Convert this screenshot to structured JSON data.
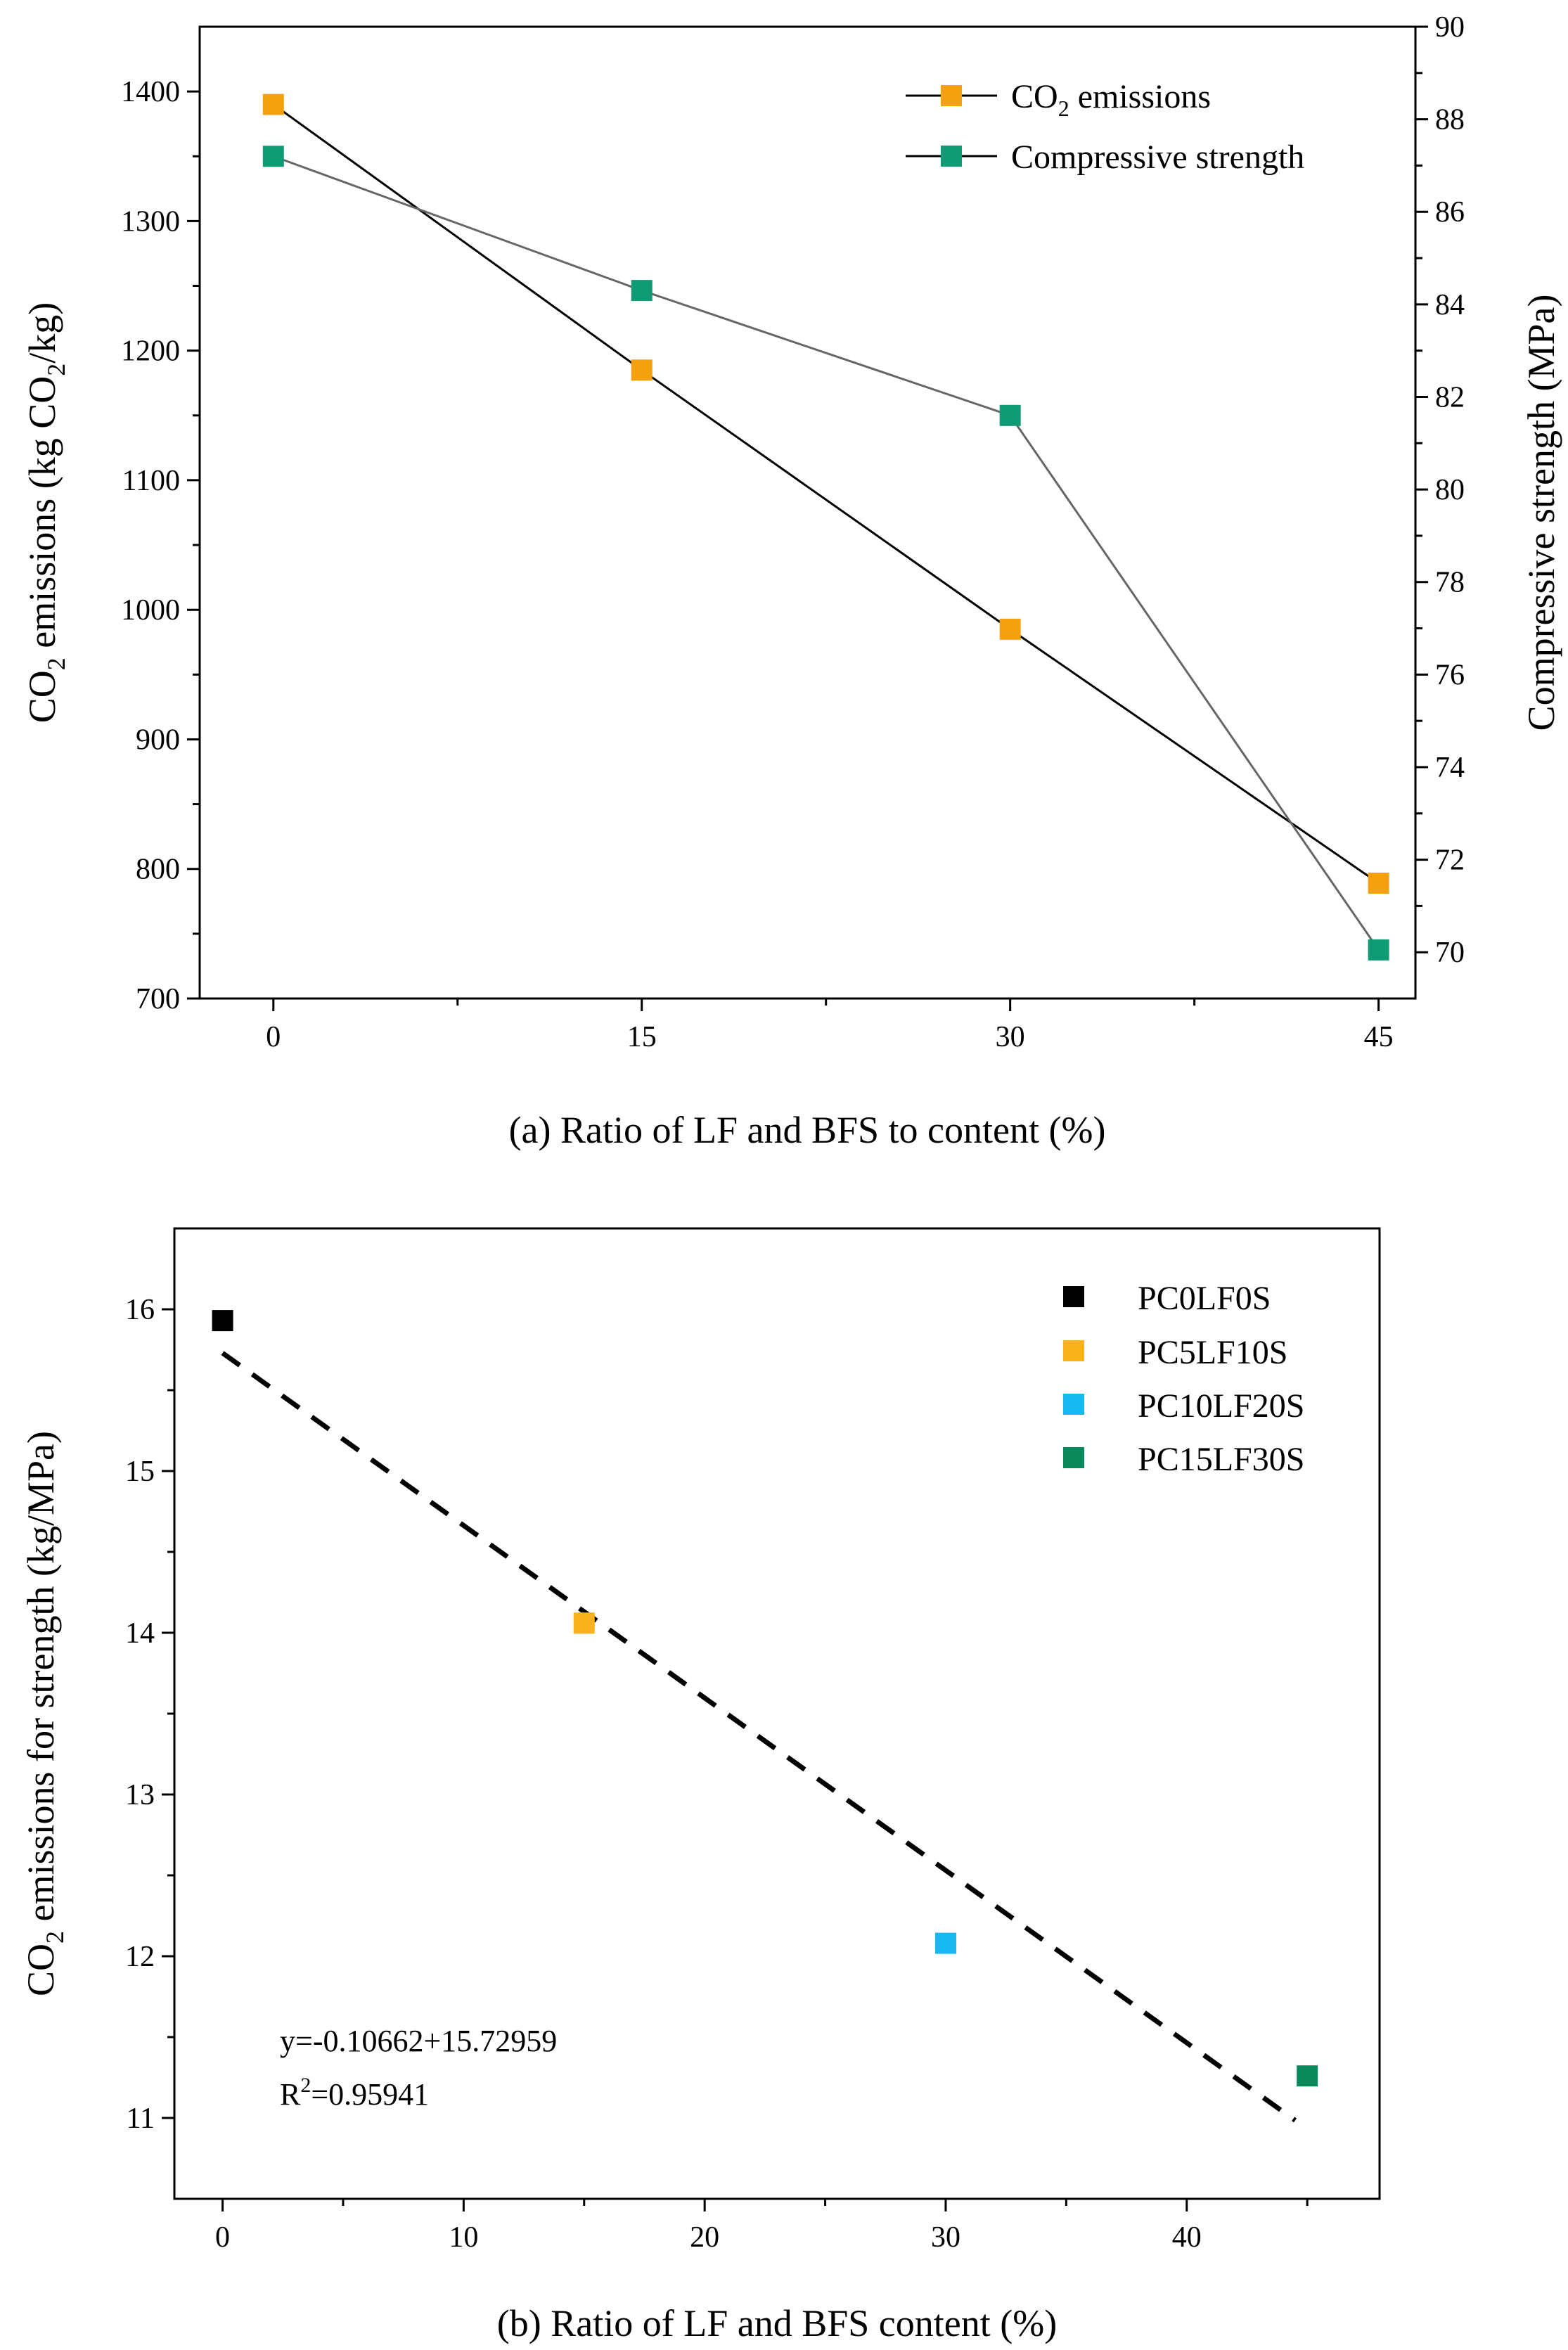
{
  "chart_data": [
    {
      "type": "line",
      "panel": "a",
      "x": [
        0,
        15,
        30,
        45
      ],
      "xlabel": "(a) Ratio of LF and BFS to content (%)",
      "ylabel": "CO₂ emissions (kg CO₂/kg)",
      "ylabel_parts": {
        "pre": "CO",
        "sub": "2",
        "mid": " emissions (kg CO",
        "sub2": "2",
        "post": "/kg)"
      },
      "y2label": "Compressive strength (MPa)",
      "xlim": [
        -3,
        46.5
      ],
      "ylim": [
        700,
        1450
      ],
      "y2lim": [
        69,
        90
      ],
      "xticks": [
        0,
        15,
        30,
        45
      ],
      "xminor": [
        7.5,
        22.5,
        37.5
      ],
      "yticks": [
        700,
        800,
        900,
        1000,
        1100,
        1200,
        1300,
        1400
      ],
      "y2ticks": [
        70,
        72,
        74,
        76,
        78,
        80,
        82,
        84,
        86,
        88,
        90
      ],
      "legend_position": "top-right",
      "series": [
        {
          "name": "CO₂ emissions",
          "name_parts": {
            "pre": "CO",
            "sub": "2",
            "post": " emissions"
          },
          "axis": "left",
          "values": [
            1390,
            1185,
            985,
            789
          ],
          "marker_color": "#f5a00f",
          "line_color": "#000000"
        },
        {
          "name": "Compressive strength",
          "axis": "right",
          "values": [
            87.2,
            84.3,
            81.6,
            70.05
          ],
          "marker_color": "#0f9b74",
          "line_color": "#666666"
        }
      ]
    },
    {
      "type": "scatter",
      "panel": "b",
      "xlabel": "(b) Ratio of LF and BFS content (%)",
      "ylabel": "CO₂ emissions for strength (kg/MPa)",
      "ylabel_parts": {
        "pre": "CO",
        "sub": "2",
        "post": " emissions for strength (kg/MPa)"
      },
      "xlim": [
        -2,
        48
      ],
      "ylim": [
        10.5,
        16.5
      ],
      "xticks": [
        0,
        10,
        20,
        30,
        40
      ],
      "xminor": [
        5,
        15,
        25,
        35,
        45
      ],
      "yticks": [
        11,
        12,
        13,
        14,
        15,
        16
      ],
      "yminor": [
        11.5,
        12.5,
        13.5,
        14.5,
        15.5
      ],
      "legend_position": "top-right",
      "points": [
        {
          "name": "PC0LF0S",
          "x": 0,
          "y": 15.93,
          "color": "#000000"
        },
        {
          "name": "PC5LF10S",
          "x": 15,
          "y": 14.06,
          "color": "#f9b21b"
        },
        {
          "name": "PC10LF20S",
          "x": 30,
          "y": 12.08,
          "color": "#18b8f0"
        },
        {
          "name": "PC15LF30S",
          "x": 45,
          "y": 11.26,
          "color": "#0a8a5c"
        }
      ],
      "fit": {
        "slope": -0.10662,
        "intercept": 15.72959,
        "x_range": [
          0,
          44.5
        ],
        "style": "dashed",
        "color": "#000000"
      },
      "annotation": {
        "equation": "y=-0.10662+15.72959",
        "r2_prefix": "R",
        "r2_sup": "2",
        "r2_value": "=0.95941"
      }
    }
  ]
}
